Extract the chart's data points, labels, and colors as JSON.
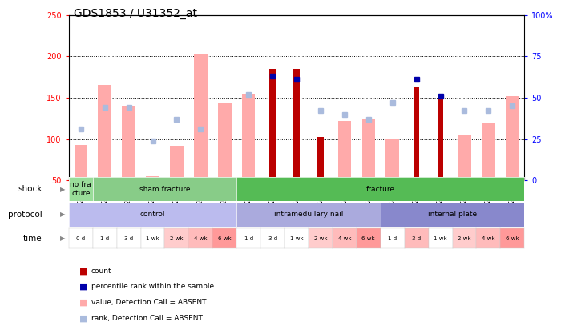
{
  "title": "GDS1853 / U31352_at",
  "samples": [
    "GSM29016",
    "GSM29029",
    "GSM29030",
    "GSM29031",
    "GSM29032",
    "GSM29033",
    "GSM29034",
    "GSM29017",
    "GSM29018",
    "GSM29019",
    "GSM29020",
    "GSM29021",
    "GSM29022",
    "GSM29023",
    "GSM29024",
    "GSM29025",
    "GSM29026",
    "GSM29027",
    "GSM29028"
  ],
  "count_values": [
    null,
    null,
    null,
    null,
    null,
    null,
    null,
    null,
    185,
    185,
    102,
    null,
    null,
    null,
    163,
    150,
    null,
    null,
    null
  ],
  "count_absent": [
    93,
    165,
    140,
    55,
    92,
    203,
    143,
    155,
    null,
    null,
    null,
    122,
    124,
    100,
    null,
    null,
    105,
    120,
    152
  ],
  "rank_values_pct": [
    null,
    null,
    null,
    null,
    null,
    null,
    null,
    null,
    63,
    61,
    null,
    null,
    null,
    null,
    61,
    51,
    null,
    null,
    null
  ],
  "rank_absent_pct": [
    31,
    44,
    44,
    24,
    37,
    31,
    null,
    52,
    null,
    null,
    42,
    40,
    37,
    47,
    null,
    null,
    42,
    42,
    45
  ],
  "ylim": [
    50,
    250
  ],
  "y2lim": [
    0,
    100
  ],
  "yticks": [
    50,
    100,
    150,
    200,
    250
  ],
  "ytick_labels": [
    "50",
    "100",
    "150",
    "200",
    "250"
  ],
  "y2ticks": [
    0,
    25,
    50,
    75,
    100
  ],
  "y2tick_labels": [
    "0",
    "25",
    "50",
    "75",
    "100%"
  ],
  "shock_groups": [
    {
      "label": "no fra\ncture",
      "start": 0,
      "end": 1,
      "color": "#99DD99"
    },
    {
      "label": "sham fracture",
      "start": 1,
      "end": 7,
      "color": "#88CC88"
    },
    {
      "label": "fracture",
      "start": 7,
      "end": 19,
      "color": "#55BB55"
    }
  ],
  "protocol_groups": [
    {
      "label": "control",
      "start": 0,
      "end": 7,
      "color": "#BBBBEE"
    },
    {
      "label": "intramedullary nail",
      "start": 7,
      "end": 13,
      "color": "#AAAADD"
    },
    {
      "label": "internal plate",
      "start": 13,
      "end": 19,
      "color": "#8888CC"
    }
  ],
  "time_labels": [
    "0 d",
    "1 d",
    "3 d",
    "1 wk",
    "2 wk",
    "4 wk",
    "6 wk",
    "1 d",
    "3 d",
    "1 wk",
    "2 wk",
    "4 wk",
    "6 wk",
    "1 d",
    "3 d",
    "1 wk",
    "2 wk",
    "4 wk",
    "6 wk"
  ],
  "time_colors": [
    "#FFFFFF",
    "#FFFFFF",
    "#FFFFFF",
    "#FFFFFF",
    "#FFCCCC",
    "#FFBBBB",
    "#FF9999",
    "#FFFFFF",
    "#FFFFFF",
    "#FFFFFF",
    "#FFCCCC",
    "#FFBBBB",
    "#FF9999",
    "#FFFFFF",
    "#FFBBBB",
    "#FFFFFF",
    "#FFCCCC",
    "#FFBBBB",
    "#FF9999"
  ],
  "count_color": "#BB0000",
  "count_absent_color": "#FFAAAA",
  "rank_color": "#0000AA",
  "rank_absent_color": "#AABBDD",
  "title_fontsize": 10,
  "tick_fontsize": 7,
  "label_fontsize": 7.5
}
